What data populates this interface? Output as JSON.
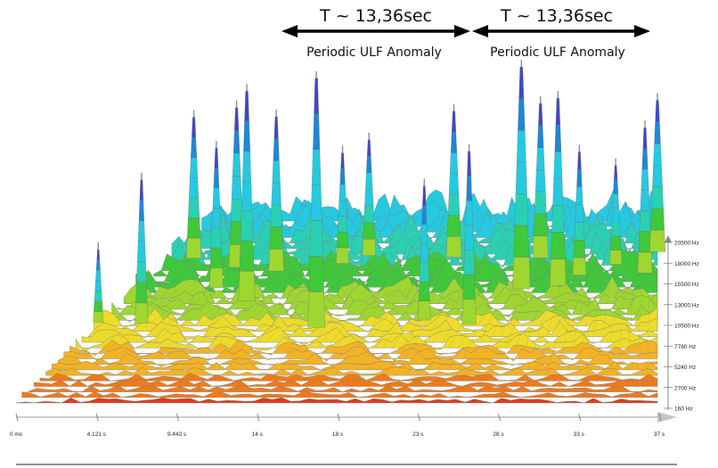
{
  "chart_data": {
    "type": "area",
    "subtype": "3d-spectrogram-waterfall",
    "title": "",
    "xlabel": "",
    "ylabel": "",
    "x_ticks": [
      "0 ms",
      "4.121 s",
      "9.443 s",
      "14 s",
      "18 s",
      "23 s",
      "28 s",
      "33 s",
      "37 s"
    ],
    "x_range": [
      0,
      37
    ],
    "freq_ticks": [
      "20500 Hz",
      "18000 Hz",
      "15500 Hz",
      "13000 Hz",
      "10500 Hz",
      "7780 Hz",
      "5240 Hz",
      "2700 Hz",
      "160 Hz"
    ],
    "freq_range": [
      160,
      20500
    ],
    "peaks": [
      {
        "t": 4.5,
        "h": 0.28
      },
      {
        "t": 7.0,
        "h": 0.55
      },
      {
        "t": 9.8,
        "h": 0.72
      },
      {
        "t": 11.2,
        "h": 0.62
      },
      {
        "t": 12.3,
        "h": 0.78
      },
      {
        "t": 13.0,
        "h": 0.88
      },
      {
        "t": 14.6,
        "h": 0.74
      },
      {
        "t": 17.1,
        "h": 0.94
      },
      {
        "t": 18.4,
        "h": 0.55
      },
      {
        "t": 19.9,
        "h": 0.6
      },
      {
        "t": 23.3,
        "h": 0.52
      },
      {
        "t": 24.8,
        "h": 0.75
      },
      {
        "t": 25.9,
        "h": 0.66
      },
      {
        "t": 28.8,
        "h": 0.98
      },
      {
        "t": 29.8,
        "h": 0.79
      },
      {
        "t": 30.9,
        "h": 0.84
      },
      {
        "t": 32.1,
        "h": 0.58
      },
      {
        "t": 34.3,
        "h": 0.49
      },
      {
        "t": 36.2,
        "h": 0.69
      },
      {
        "t": 37.0,
        "h": 0.8
      }
    ],
    "colormap": [
      "#e23a1b",
      "#f07a18",
      "#f4b324",
      "#eedc2a",
      "#9fd630",
      "#3fc83a",
      "#2bd0b4",
      "#25c9e0",
      "#1f86d8",
      "#3e48c8",
      "#7b3fc8"
    ]
  },
  "annotations": [
    {
      "label": "T ~ 13,36sec",
      "sublabel": "Periodic ULF Anomaly"
    },
    {
      "label": "T ~ 13,36sec",
      "sublabel": "Periodic ULF Anomaly"
    }
  ]
}
